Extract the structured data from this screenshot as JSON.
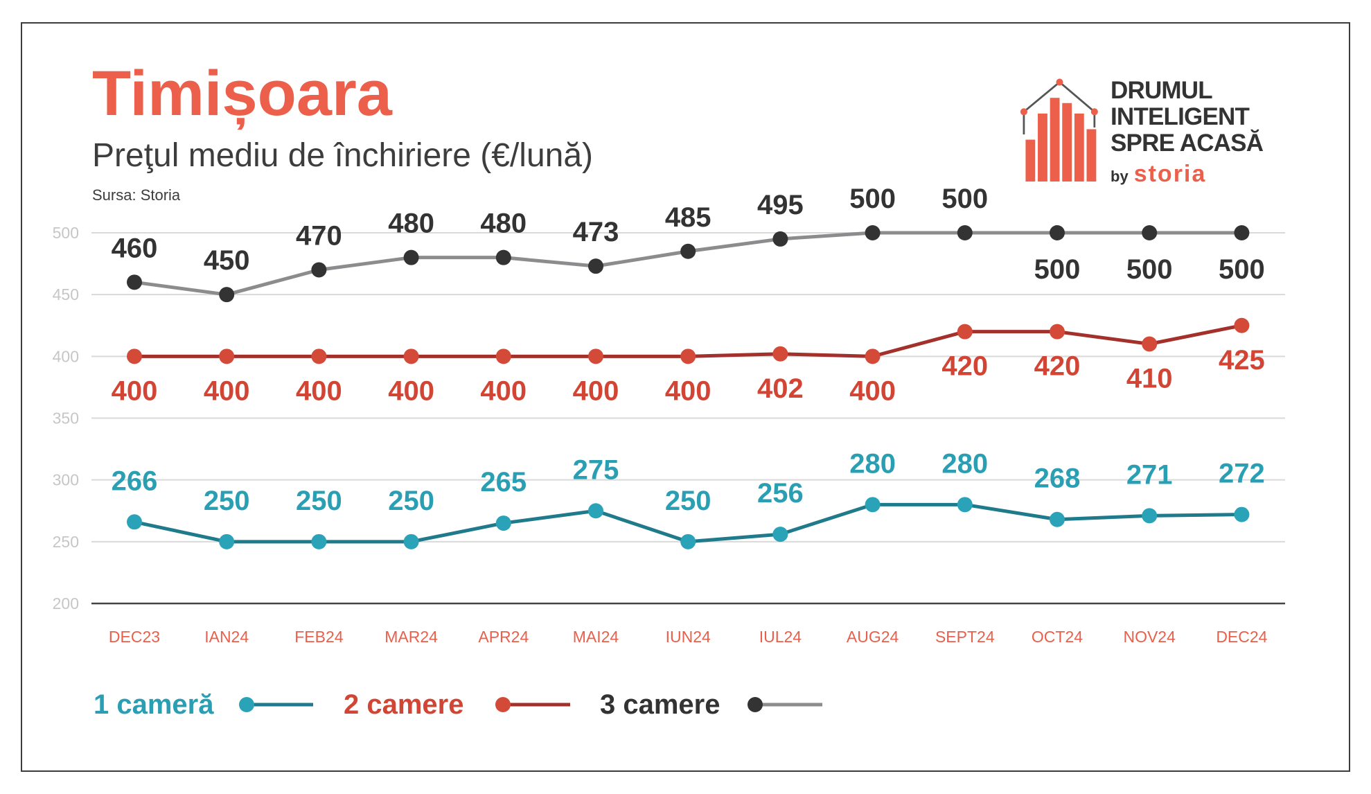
{
  "colors": {
    "accent": "#eb5f4b",
    "text": "#3a3a3a",
    "grid": "#d9d9d9",
    "axis": "#444444",
    "tick": "#c6c6c6",
    "month": "#e8604c"
  },
  "logo": {
    "icon": "house-bars-icon",
    "lines": [
      "DRUMUL",
      "INTELIGENT",
      "SPRE ACASĂ"
    ],
    "by": "by",
    "brand": "storia"
  },
  "chart_data": {
    "type": "line",
    "title": "Timișoara",
    "subtitle": "Preţul mediu de închiriere (€/lună)",
    "source": "Sursa: Storia",
    "xlabel": "",
    "ylabel": "",
    "ylim": [
      200,
      500
    ],
    "yticks": [
      200,
      250,
      300,
      350,
      400,
      450,
      500
    ],
    "grid": true,
    "legend": "bottom-left",
    "categories": [
      "DEC23",
      "IAN24",
      "FEB24",
      "MAR24",
      "APR24",
      "MAI24",
      "IUN24",
      "IUL24",
      "AUG24",
      "SEPT24",
      "OCT24",
      "NOV24",
      "DEC24"
    ],
    "series": [
      {
        "name": "1 cameră",
        "values": [
          266,
          250,
          250,
          250,
          265,
          275,
          250,
          256,
          280,
          280,
          268,
          271,
          272
        ],
        "line_color": "#1f7b8b",
        "point_color": "#2aa3b8",
        "label_color": "#2a9fb3"
      },
      {
        "name": "2 camere",
        "values": [
          400,
          400,
          400,
          400,
          400,
          400,
          400,
          402,
          400,
          420,
          420,
          410,
          425
        ],
        "line_color": "#a3302a",
        "point_color": "#d44a38",
        "label_color": "#d24535"
      },
      {
        "name": "3 camere",
        "values": [
          460,
          450,
          470,
          480,
          480,
          473,
          485,
          495,
          500,
          500,
          500,
          500,
          500
        ],
        "line_color": "#8c8c8f",
        "point_color": "#333333",
        "label_color": "#333333"
      }
    ]
  }
}
